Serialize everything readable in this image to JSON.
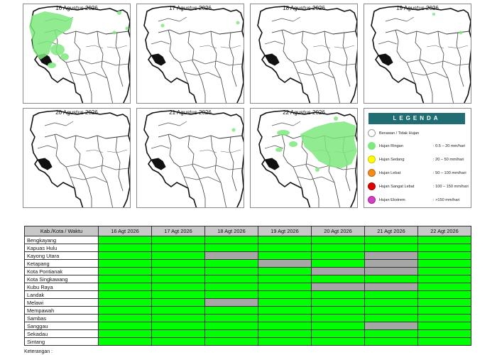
{
  "maps": [
    {
      "date": "16 Agustus 2026"
    },
    {
      "date": "17 Agustus 2026"
    },
    {
      "date": "18 Agustus 2026"
    },
    {
      "date": "19 Agustus 2026"
    },
    {
      "date": "20 Agustus 2026"
    },
    {
      "date": "21 Agustus 2026"
    },
    {
      "date": "22 Agustus 2026"
    }
  ],
  "legend": {
    "title": "LEGENDA",
    "items": [
      {
        "name": "Berawan / Tidak Hujan",
        "range": "",
        "color": "#ffffff"
      },
      {
        "name": "Hujan Ringan",
        "range": ": 0.5 – 20 mm/hari",
        "color": "#7ee87e"
      },
      {
        "name": "Hujan Sedang",
        "range": ": 20 – 50 mm/hari",
        "color": "#ffff00"
      },
      {
        "name": "Hujan Lebat",
        "range": ": 50 – 100 mm/hari",
        "color": "#f08c1e"
      },
      {
        "name": "Hujan Sangat Lebat",
        "range": ": 100 – 150 mm/hari",
        "color": "#e00000"
      },
      {
        "name": "Hujan Ekstrem",
        "range": ": >150 mm/hari",
        "color": "#d040c0"
      }
    ]
  },
  "table": {
    "header": [
      "Kab./Kota / Waktu",
      "16 Agt 2026",
      "17 Agt 2026",
      "18 Agt 2026",
      "19 Agt 2026",
      "20 Agt 2026",
      "21 Agt 2026",
      "22 Agt 2026"
    ],
    "rows": [
      {
        "region": "Bengkayang",
        "cells": [
          "g",
          "g",
          "g",
          "g",
          "g",
          "g",
          "g"
        ]
      },
      {
        "region": "Kapuas Hulu",
        "cells": [
          "g",
          "g",
          "g",
          "g",
          "g",
          "g",
          "g"
        ]
      },
      {
        "region": "Kayong Utara",
        "cells": [
          "g",
          "g",
          "x",
          "g",
          "g",
          "x",
          "g"
        ]
      },
      {
        "region": "Ketapang",
        "cells": [
          "g",
          "g",
          "g",
          "x",
          "g",
          "x",
          "g"
        ]
      },
      {
        "region": "Kota Pontianak",
        "cells": [
          "g",
          "g",
          "g",
          "g",
          "x",
          "x",
          "g"
        ]
      },
      {
        "region": "Kota Singkawang",
        "cells": [
          "g",
          "g",
          "g",
          "g",
          "g",
          "g",
          "g"
        ]
      },
      {
        "region": "Kubu Raya",
        "cells": [
          "g",
          "g",
          "g",
          "g",
          "x",
          "x",
          "g"
        ]
      },
      {
        "region": "Landak",
        "cells": [
          "g",
          "g",
          "g",
          "g",
          "g",
          "g",
          "g"
        ]
      },
      {
        "region": "Melawi",
        "cells": [
          "g",
          "g",
          "x",
          "g",
          "g",
          "g",
          "g"
        ]
      },
      {
        "region": "Mempawah",
        "cells": [
          "g",
          "g",
          "g",
          "g",
          "g",
          "g",
          "g"
        ]
      },
      {
        "region": "Sambas",
        "cells": [
          "g",
          "g",
          "g",
          "g",
          "g",
          "g",
          "g"
        ]
      },
      {
        "region": "Sanggau",
        "cells": [
          "g",
          "g",
          "g",
          "g",
          "g",
          "x",
          "g"
        ]
      },
      {
        "region": "Sekadau",
        "cells": [
          "g",
          "g",
          "g",
          "g",
          "g",
          "g",
          "g"
        ]
      },
      {
        "region": "Sintang",
        "cells": [
          "g",
          "g",
          "g",
          "g",
          "g",
          "g",
          "g"
        ]
      }
    ]
  },
  "note": "Keterangan :",
  "colors": {
    "rain": "#00ff00",
    "no_rain": "#a6a6a6",
    "header_bg": "#c8c8c8"
  }
}
